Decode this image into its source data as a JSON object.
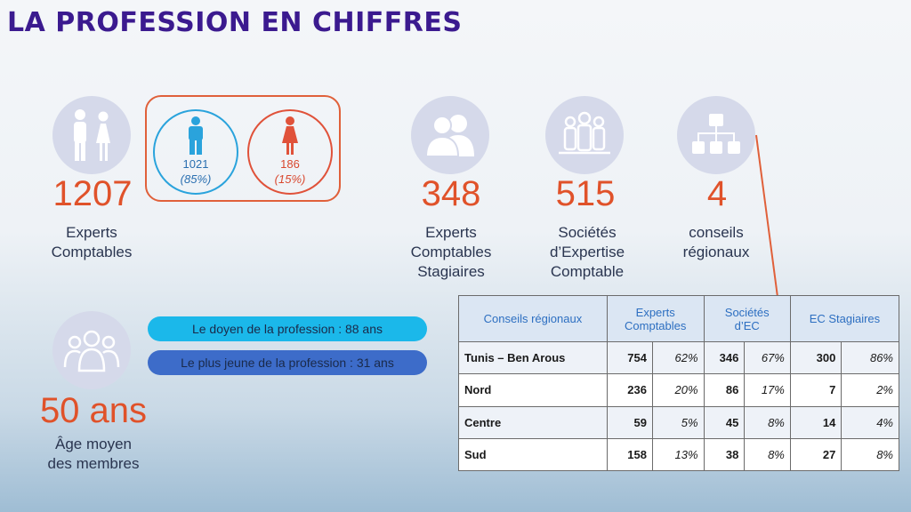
{
  "title": "LA PROFESSION EN CHIFFRES",
  "experts": {
    "value": "1207",
    "label_line1": "Experts",
    "label_line2": "Comptables"
  },
  "gender": {
    "male": {
      "count": "1021",
      "pct": "(85%)",
      "color": "#2aa3dc"
    },
    "female": {
      "count": "186",
      "pct": "(15%)",
      "color": "#e0523a"
    }
  },
  "stagiaires": {
    "value": "348",
    "line1": "Experts",
    "line2": "Comptables",
    "line3": "Stagiaires"
  },
  "societes": {
    "value": "515",
    "line1": "Sociétés",
    "line2": "d’Expertise",
    "line3": "Comptable"
  },
  "conseils": {
    "value": "4",
    "line1": "conseils",
    "line2": "régionaux"
  },
  "age": {
    "value": "50 ans",
    "line1": "Âge moyen",
    "line2": "des membres"
  },
  "pills": {
    "doyen": "Le doyen de la profession : 88 ans",
    "jeune": "Le plus jeune de la profession : 31 ans"
  },
  "table": {
    "headers": {
      "region": "Conseils régionaux",
      "experts_l1": "Experts",
      "experts_l2": "Comptables",
      "societes_l1": "Sociétés",
      "societes_l2": "d’EC",
      "stagiaires": "EC Stagiaires"
    },
    "rows": [
      {
        "region": "Tunis – Ben Arous",
        "ec": "754",
        "ec_pct": "62%",
        "se": "346",
        "se_pct": "67%",
        "st": "300",
        "st_pct": "86%"
      },
      {
        "region": "Nord",
        "ec": "236",
        "ec_pct": "20%",
        "se": "86",
        "se_pct": "17%",
        "st": "7",
        "st_pct": "2%"
      },
      {
        "region": "Centre",
        "ec": "59",
        "ec_pct": "5%",
        "se": "45",
        "se_pct": "8%",
        "st": "14",
        "st_pct": "4%"
      },
      {
        "region": "Sud",
        "ec": "158",
        "ec_pct": "13%",
        "se": "38",
        "se_pct": "8%",
        "st": "27",
        "st_pct": "8%"
      }
    ]
  },
  "colors": {
    "accent": "#e0522a",
    "title": "#3b1a8f",
    "pill_light": "#1bb8ea",
    "pill_dark": "#3d6cc9"
  }
}
